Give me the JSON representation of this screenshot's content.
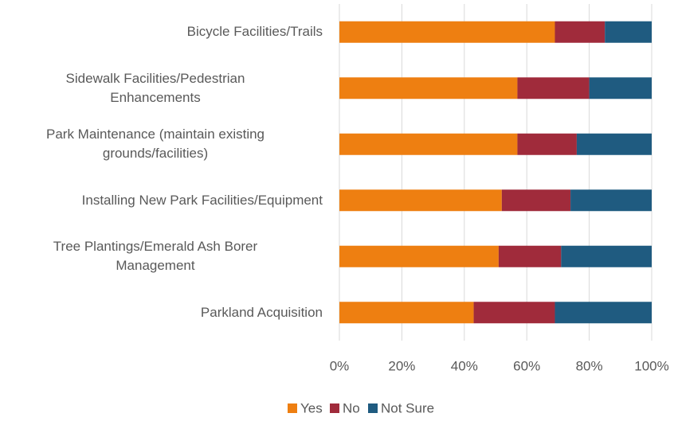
{
  "chart_data": {
    "type": "stacked_barh",
    "categories": [
      "Bicycle Facilities/Trails",
      "Sidewalk Facilities/Pedestrian\nEnhancements",
      "Park Maintenance (maintain existing\ngrounds/facilities)",
      "Installing New Park Facilities/Equipment",
      "Tree Plantings/Emerald Ash Borer\nManagement",
      "Parkland Acquisition"
    ],
    "series": [
      {
        "name": "Yes",
        "color": "#ee7f11",
        "values": [
          69,
          57,
          57,
          52,
          51,
          43
        ]
      },
      {
        "name": "No",
        "color": "#a02b3b",
        "values": [
          16,
          23,
          19,
          22,
          20,
          26
        ]
      },
      {
        "name": "Not Sure",
        "color": "#1f5b80",
        "values": [
          15,
          20,
          24,
          26,
          29,
          31
        ]
      }
    ],
    "xlim": [
      0,
      100
    ],
    "xticks": [
      {
        "value": 0,
        "label": "0%"
      },
      {
        "value": 20,
        "label": "20%"
      },
      {
        "value": 40,
        "label": "40%"
      },
      {
        "value": 60,
        "label": "60%"
      },
      {
        "value": 80,
        "label": "80%"
      },
      {
        "value": 100,
        "label": "100%"
      }
    ],
    "grid": true,
    "legend": "bottom"
  }
}
